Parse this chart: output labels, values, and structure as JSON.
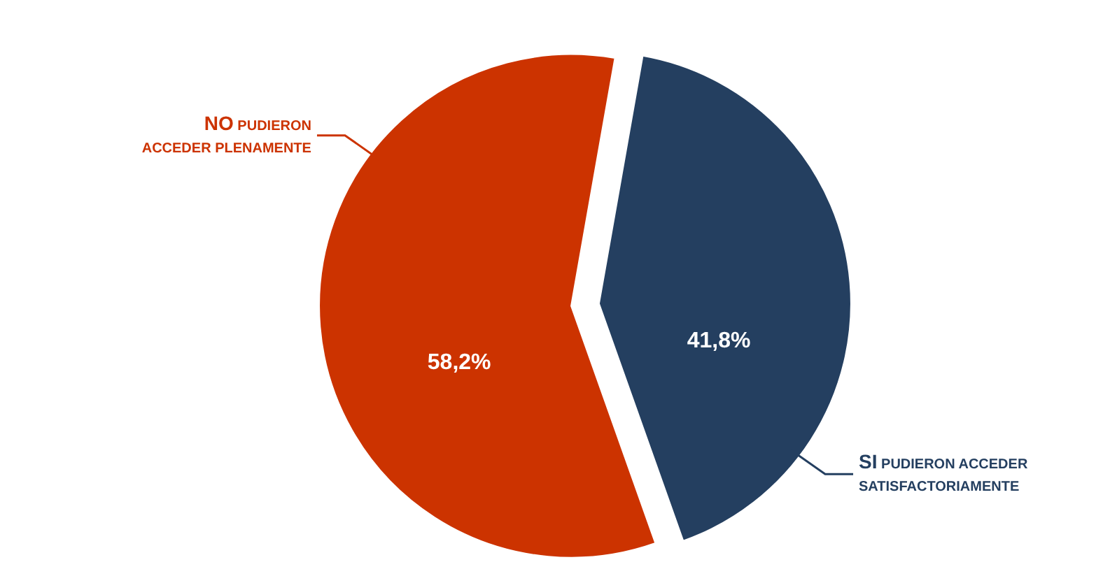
{
  "chart_data": {
    "type": "pie",
    "categories": [
      "NO PUDIERON ACCEDER PLENAMENTE",
      "SI PUDIERON ACCEDER SATISFACTORIAMENTE"
    ],
    "values": [
      58.2,
      41.8
    ],
    "colors": [
      "#cc3300",
      "#243f60"
    ],
    "value_labels": [
      "58,2%",
      "41,8%"
    ],
    "legend": false
  }
}
